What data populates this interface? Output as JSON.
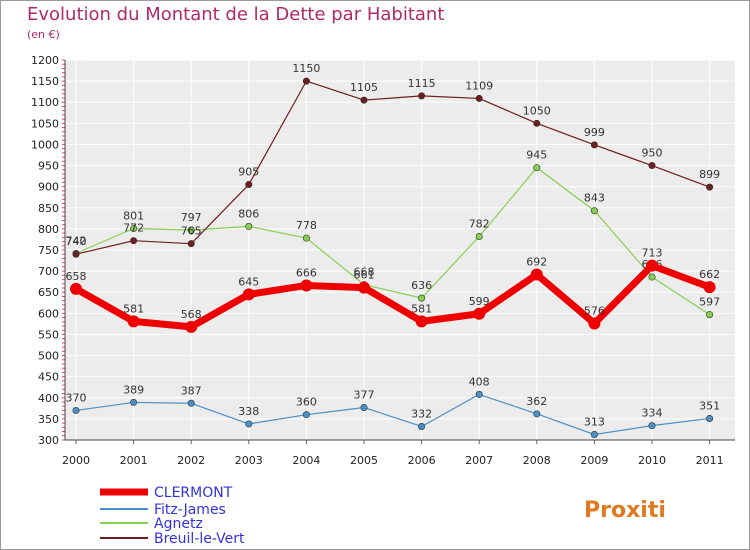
{
  "title": "Evolution du Montant de la Dette par Habitant",
  "subtitle": "(en €)",
  "logo_text": "Proxiti",
  "chart_data": {
    "type": "line",
    "x": [
      "2000",
      "2001",
      "2002",
      "2003",
      "2004",
      "2005",
      "2006",
      "2007",
      "2008",
      "2009",
      "2010",
      "2011"
    ],
    "ylim": [
      300,
      1200
    ],
    "yticks": [
      300,
      350,
      400,
      450,
      500,
      550,
      600,
      650,
      700,
      750,
      800,
      850,
      900,
      950,
      1000,
      1050,
      1100,
      1150,
      1200
    ],
    "grid": true,
    "legend_position": "bottom-left",
    "series": [
      {
        "name": "CLERMONT",
        "values": [
          658,
          581,
          568,
          645,
          666,
          661,
          581,
          599,
          692,
          576,
          713,
          662
        ],
        "color": "#ee0000",
        "labels": [
          "658",
          "581",
          "568",
          "645",
          "666",
          "661",
          "581",
          "599",
          "692",
          "576",
          "713",
          "662"
        ]
      },
      {
        "name": "Fitz-James",
        "values": [
          370,
          389,
          387,
          338,
          360,
          377,
          332,
          408,
          362,
          313,
          334,
          351
        ],
        "color": "#4a90c8",
        "labels": [
          "370",
          "389",
          "387",
          "338",
          "360",
          "377",
          "332",
          "408",
          "362",
          "313",
          "334",
          "351"
        ]
      },
      {
        "name": "Agnetz",
        "values": [
          742,
          801,
          797,
          806,
          778,
          668,
          636,
          782,
          945,
          843,
          686,
          597
        ],
        "color": "#88d050",
        "labels": [
          "742",
          "801",
          "797",
          "806",
          "778",
          "668",
          "636",
          "782",
          "945",
          "843",
          "686",
          "597"
        ]
      },
      {
        "name": "Breuil-le-Vert",
        "values": [
          740,
          772,
          765,
          905,
          1150,
          1105,
          1115,
          1109,
          1050,
          999,
          950,
          899
        ],
        "color": "#6e1e1e",
        "labels": [
          "740",
          "772",
          "765",
          "905",
          "1150",
          "1105",
          "1115",
          "1109",
          "1050",
          "999",
          "950",
          "899"
        ]
      }
    ]
  }
}
